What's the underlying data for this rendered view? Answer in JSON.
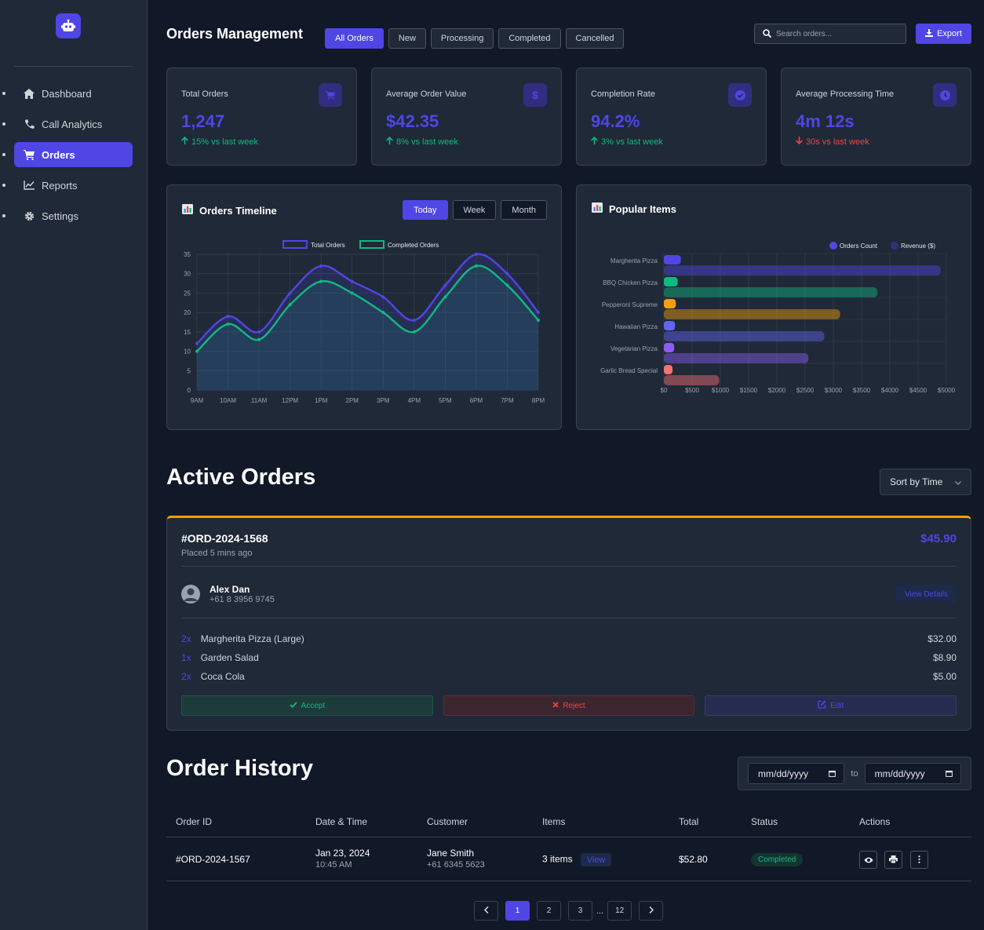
{
  "sidebar": {
    "items": [
      {
        "label": "Dashboard",
        "icon": "home-icon"
      },
      {
        "label": "Call Analytics",
        "icon": "phone-icon"
      },
      {
        "label": "Orders",
        "icon": "cart-icon",
        "active": true
      },
      {
        "label": "Reports",
        "icon": "chart-line-icon"
      },
      {
        "label": "Settings",
        "icon": "gear-icon"
      }
    ]
  },
  "header": {
    "title": "Orders Management",
    "filters": [
      "All Orders",
      "New",
      "Processing",
      "Completed",
      "Cancelled"
    ],
    "search_placeholder": "Search orders...",
    "export_label": "Export"
  },
  "stats": [
    {
      "label": "Total Orders",
      "value": "1,247",
      "change": "15% vs last week",
      "trend": "up",
      "icon": "cart-icon"
    },
    {
      "label": "Average Order Value",
      "value": "$42.35",
      "change": "8% vs last week",
      "trend": "up",
      "icon": "dollar-icon"
    },
    {
      "label": "Completion Rate",
      "value": "94.2%",
      "change": "3% vs last week",
      "trend": "up",
      "icon": "check-circle-icon"
    },
    {
      "label": "Average Processing Time",
      "value": "4m 12s",
      "change": "30s vs last week",
      "trend": "down",
      "icon": "clock-icon"
    }
  ],
  "timeline": {
    "title": "Orders Timeline",
    "ranges": [
      "Today",
      "Week",
      "Month"
    ]
  },
  "popular": {
    "title": "Popular Items"
  },
  "chart_data": [
    {
      "type": "line",
      "x": [
        "9AM",
        "10AM",
        "11AM",
        "12PM",
        "1PM",
        "2PM",
        "3PM",
        "4PM",
        "5PM",
        "6PM",
        "7PM",
        "8PM"
      ],
      "series": [
        {
          "name": "Total Orders",
          "values": [
            12,
            19,
            15,
            25,
            32,
            28,
            24,
            18,
            27,
            35,
            30,
            20
          ],
          "color": "#4f46e5"
        },
        {
          "name": "Completed Orders",
          "values": [
            10,
            17,
            13,
            22,
            28,
            25,
            20,
            15,
            24,
            32,
            27,
            18
          ],
          "color": "#10b981"
        }
      ],
      "ylim": [
        0,
        35
      ],
      "yticks": [
        0,
        5,
        10,
        15,
        20,
        25,
        30,
        35
      ],
      "grid": true,
      "legend": "top"
    },
    {
      "type": "bar",
      "orientation": "horizontal",
      "categories": [
        "Margherita Pizza",
        "BBQ Chicken Pizza",
        "Pepperoni Supreme",
        "Hawaiian Pizza",
        "Vegetarian Pizza",
        "Garlic Bread Special"
      ],
      "series": [
        {
          "name": "Orders Count",
          "values": [
            245,
            189,
            156,
            142,
            128,
            98
          ],
          "color": "#4f46e5"
        },
        {
          "name": "Revenue ($)",
          "values": [
            4900,
            3780,
            3120,
            2840,
            2560,
            980
          ],
          "color": "#312e81"
        }
      ],
      "bar_colors": [
        "#4f46e5",
        "#10b981",
        "#f59e0b",
        "#6366f1",
        "#8b5cf6",
        "#f87171"
      ],
      "xlim": [
        0,
        5000
      ],
      "xticks": [
        "$0",
        "$500",
        "$1000",
        "$1500",
        "$2000",
        "$2500",
        "$3000",
        "$3500",
        "$4000",
        "$4500",
        "$5000"
      ],
      "grid": true,
      "legend": "top-right"
    }
  ],
  "active_orders": {
    "title": "Active Orders",
    "sort_label": "Sort by Time",
    "order": {
      "id": "#ORD-2024-1568",
      "placed": "Placed 5 mins ago",
      "total": "$45.90",
      "customer_name": "Alex Dan",
      "customer_phone": "+61 8 3956 9745",
      "view_details": "View Details",
      "items": [
        {
          "qty": "2x",
          "name": "Margherita Pizza (Large)",
          "price": "$32.00"
        },
        {
          "qty": "1x",
          "name": "Garden Salad",
          "price": "$8.90"
        },
        {
          "qty": "2x",
          "name": "Coca Cola",
          "price": "$5.00"
        }
      ],
      "accept": "Accept",
      "reject": "Reject",
      "edit": "Edit"
    }
  },
  "history": {
    "title": "Order History",
    "date_placeholder": "mm/dd/yyyy",
    "to_label": "to",
    "columns": [
      "Order ID",
      "Date & Time",
      "Customer",
      "Items",
      "Total",
      "Status",
      "Actions"
    ],
    "rows": [
      {
        "id": "#ORD-2024-1567",
        "date": "Jan 23, 2024",
        "time": "10:45 AM",
        "customer": "Jane Smith",
        "phone": "+61 6345 5623",
        "items": "3 items",
        "view": "View",
        "total": "$52.80",
        "status": "Completed"
      }
    ],
    "pages": [
      "1",
      "2",
      "3",
      "...",
      "12"
    ],
    "current_page": "1"
  }
}
